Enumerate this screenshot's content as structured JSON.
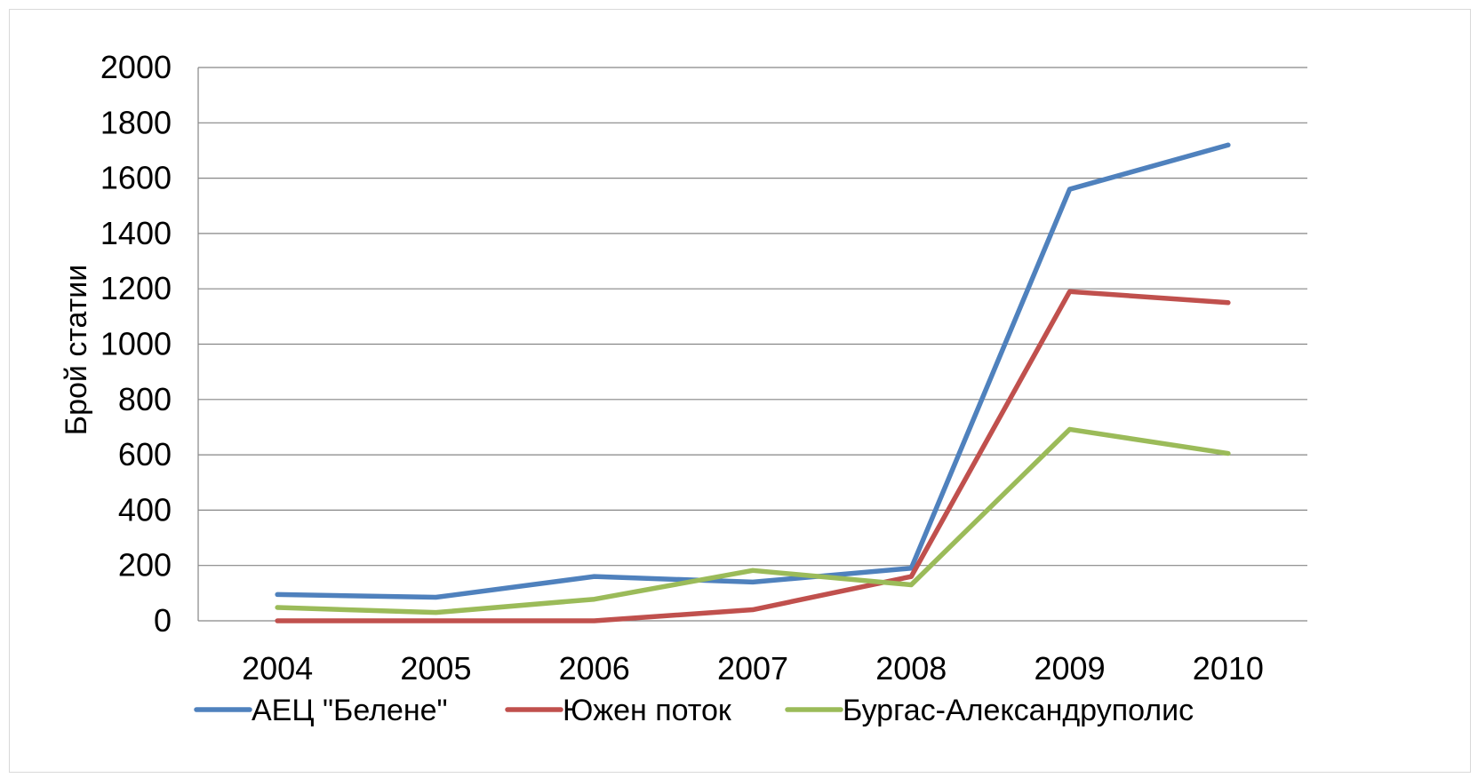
{
  "chart_data": {
    "type": "line",
    "title": "",
    "xlabel": "",
    "ylabel": "Брой статии",
    "ylim": [
      0,
      2000
    ],
    "yticks": [
      0,
      200,
      400,
      600,
      800,
      1000,
      1200,
      1400,
      1600,
      1800,
      2000
    ],
    "categories": [
      "2004",
      "2005",
      "2006",
      "2007",
      "2008",
      "2009",
      "2010"
    ],
    "grid": true,
    "legend_position": "bottom",
    "series": [
      {
        "name": "АЕЦ \"Белене\"",
        "color": "#4f81bd",
        "values": [
          95,
          85,
          160,
          140,
          190,
          1560,
          1720
        ]
      },
      {
        "name": "Южен поток",
        "color": "#c0504d",
        "values": [
          0,
          0,
          0,
          40,
          160,
          1190,
          1150
        ]
      },
      {
        "name": "Бургас-Александруполис",
        "color": "#9bbb59",
        "values": [
          48,
          30,
          78,
          182,
          130,
          692,
          605
        ]
      }
    ]
  }
}
